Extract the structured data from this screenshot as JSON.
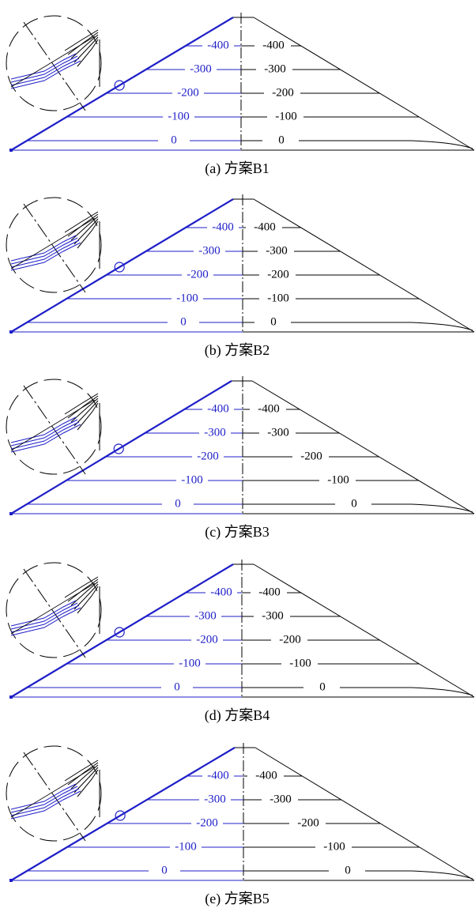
{
  "colors": {
    "upstream": "#1f1fc8",
    "downstream": "#000000",
    "background": "#ffffff"
  },
  "panels": [
    {
      "caption": "(a) 方案B1",
      "left_labels": [
        "-400",
        "-300",
        "-200",
        "-100",
        "0"
      ],
      "right_labels": [
        "-400",
        "-300",
        "-200",
        "-100",
        "0"
      ]
    },
    {
      "caption": "(b) 方案B2",
      "left_labels": [
        "-400",
        "-300",
        "-200",
        "-100",
        "0"
      ],
      "right_labels": [
        "-400",
        "-300",
        "-200",
        "-100",
        "0"
      ]
    },
    {
      "caption": "(c) 方案B3",
      "left_labels": [
        "-400",
        "-300",
        "-200",
        "-100",
        "0"
      ],
      "right_labels": [
        "-400",
        "-300",
        "-200",
        "-100",
        "0"
      ]
    },
    {
      "caption": "(d) 方案B4",
      "left_labels": [
        "-400",
        "-300",
        "-200",
        "-100",
        "0"
      ],
      "right_labels": [
        "-400",
        "-300",
        "-200",
        "-100",
        "0"
      ]
    },
    {
      "caption": "(e) 方案B5",
      "left_labels": [
        "-400",
        "-300",
        "-200",
        "-100",
        "0"
      ],
      "right_labels": [
        "-400",
        "-300",
        "-200",
        "-100",
        "0"
      ]
    }
  ]
}
